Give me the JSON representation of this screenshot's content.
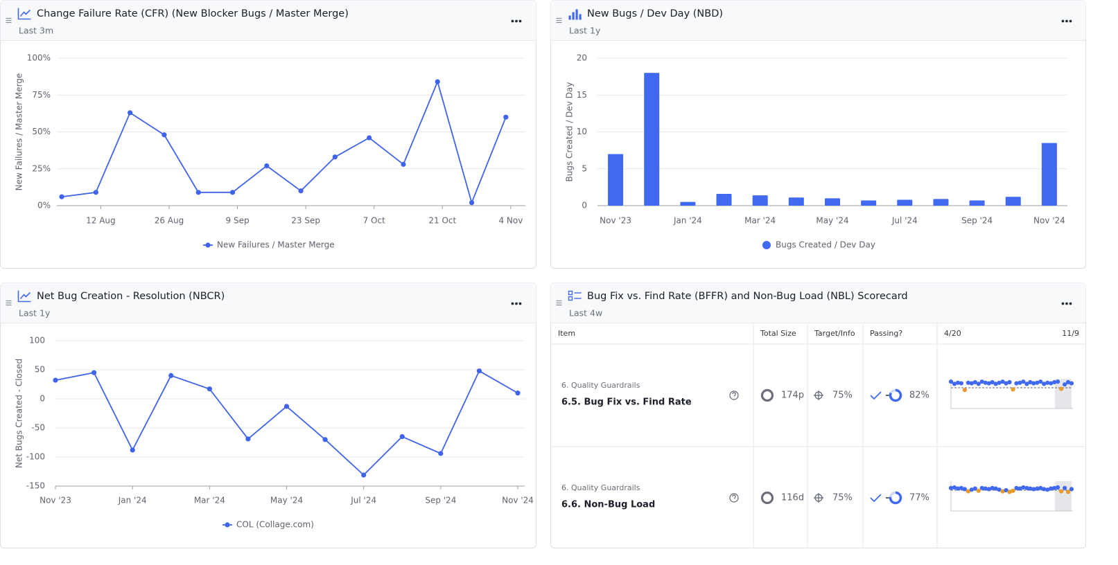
{
  "chart_data": [
    {
      "type": "line",
      "title": "Change Failure Rate (CFR) (New Blocker Bugs / Master Merge)",
      "subtitle": "Last 3m",
      "y_label": "New Failures / Master Merge",
      "x": [
        "08-04",
        "08-11",
        "08-18",
        "08-25",
        "09-01",
        "09-08",
        "09-15",
        "09-22",
        "09-29",
        "10-06",
        "10-13",
        "10-20",
        "10-27",
        "11-03"
      ],
      "xlim": [
        "08-03",
        "11-07"
      ],
      "xticks": [
        {
          "value": "08-12",
          "label": "12 Aug"
        },
        {
          "value": "08-26",
          "label": "26 Aug"
        },
        {
          "value": "09-09",
          "label": "9 Sep"
        },
        {
          "value": "09-23",
          "label": "23 Sep"
        },
        {
          "value": "10-07",
          "label": "7 Oct"
        },
        {
          "value": "10-21",
          "label": "21 Oct"
        },
        {
          "value": "11-04",
          "label": "4 Nov"
        }
      ],
      "ylim": [
        0,
        100
      ],
      "yticks": [
        {
          "value": 0,
          "label": "0%"
        },
        {
          "value": 25,
          "label": "25%"
        },
        {
          "value": 50,
          "label": "50%"
        },
        {
          "value": 75,
          "label": "75%"
        },
        {
          "value": 100,
          "label": "100%"
        }
      ],
      "grid": true,
      "series": [
        {
          "name": "New Failures / Master Merge",
          "color": "#3f63ea",
          "values": [
            6,
            9,
            63,
            48,
            9,
            9,
            27,
            10,
            33,
            46,
            28,
            84,
            2,
            60
          ]
        }
      ]
    },
    {
      "type": "bar",
      "title": "New Bugs / Dev Day (NBD)",
      "subtitle": "Last 1y",
      "y_label": "Bugs Created / Dev Day",
      "categories": [
        "Nov '23",
        null,
        "Jan '24",
        null,
        "Mar '24",
        null,
        "May '24",
        null,
        "Jul '24",
        null,
        "Sep '24",
        null,
        "Nov '24"
      ],
      "ylim": [
        0,
        20
      ],
      "yticks": [
        0,
        5,
        10,
        15,
        20
      ],
      "grid": true,
      "series": [
        {
          "name": "Bugs Created / Dev Day",
          "color": "#4169f0",
          "values": [
            7.0,
            18.0,
            0.5,
            1.6,
            1.4,
            1.1,
            1.0,
            0.7,
            0.8,
            0.9,
            0.7,
            1.2,
            8.5
          ]
        }
      ]
    },
    {
      "type": "line",
      "title": "Net Bug Creation - Resolution (NBCR)",
      "subtitle": "Last 1y",
      "y_label": "Net Bugs Created - Closed",
      "categories": [
        "Nov '23",
        null,
        "Jan '24",
        null,
        "Mar '24",
        null,
        "May '24",
        null,
        "Jul '24",
        null,
        "Sep '24",
        null,
        "Nov '24"
      ],
      "ylim": [
        -150,
        100
      ],
      "yticks": [
        -150,
        -100,
        -50,
        0,
        50,
        100
      ],
      "grid": true,
      "series": [
        {
          "name": "COL (Collage.com)",
          "color": "#3f63ea",
          "values": [
            32,
            45,
            -88,
            40,
            17,
            -69,
            -13,
            -70,
            -131,
            -65,
            -94,
            48,
            10
          ]
        }
      ]
    }
  ],
  "scorecard": {
    "title": "Bug Fix vs. Find Rate (BFFR) and Non-Bug Load (NBL) Scorecard",
    "subtitle": "Last 4w",
    "columns": [
      "Item",
      "Total Size",
      "Target/Info",
      "Passing?",
      "4/20",
      "11/9"
    ],
    "rows": [
      {
        "group": "6. Quality Guardrails",
        "name": "6.5. Bug Fix vs. Find Rate",
        "total_size": "174p",
        "target": {
          "value": 75,
          "label": "75%"
        },
        "passing": {
          "value": 82,
          "label": "82%"
        },
        "sparkline": [
          86,
          82,
          84,
          83,
          71,
          84,
          83,
          85,
          82,
          86,
          84,
          83,
          85,
          82,
          84,
          86,
          83,
          85,
          72,
          83,
          84,
          86,
          82,
          85,
          83,
          84,
          86,
          82,
          84,
          83,
          85,
          86,
          73,
          81,
          85,
          83
        ]
      },
      {
        "group": "6. Quality Guardrails",
        "name": "6.6. Non-Bug Load",
        "total_size": "116d",
        "target": {
          "value": 75,
          "label": "75%"
        },
        "passing": {
          "value": 77,
          "label": "77%"
        },
        "sparkline": [
          79,
          80,
          78,
          79,
          77,
          73,
          76,
          78,
          74,
          79,
          78,
          77,
          79,
          78,
          76,
          73,
          75,
          72,
          74,
          79,
          78,
          80,
          79,
          78,
          77,
          78,
          79,
          77,
          76,
          78,
          79,
          80,
          73,
          79,
          72,
          77
        ]
      }
    ]
  }
}
